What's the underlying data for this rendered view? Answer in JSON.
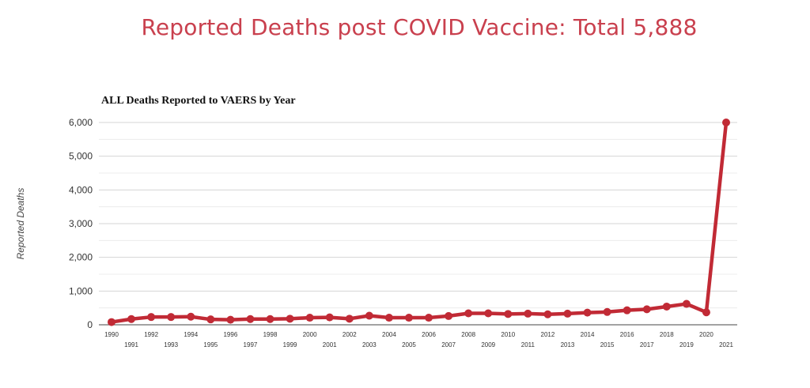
{
  "headline": "Reported Deaths post COVID Vaccine: Total 5,888",
  "chart_data": {
    "type": "line",
    "title": "ALL Deaths Reported to VAERS by Year",
    "xlabel": "",
    "ylabel": "Reported Deaths",
    "ylim": [
      0,
      6000
    ],
    "yticks": [
      0,
      1000,
      2000,
      3000,
      4000,
      5000,
      6000
    ],
    "ytick_labels": [
      "0",
      "1,000",
      "2,000",
      "3,000",
      "4,000",
      "5,000",
      "6,000"
    ],
    "grid": true,
    "line_color": "#c12a35",
    "categories": [
      "1990",
      "1991",
      "1992",
      "1993",
      "1994",
      "1995",
      "1996",
      "1997",
      "1998",
      "1999",
      "2000",
      "2001",
      "2002",
      "2003",
      "2004",
      "2005",
      "2006",
      "2007",
      "2008",
      "2009",
      "2010",
      "2011",
      "2012",
      "2013",
      "2014",
      "2015",
      "2016",
      "2017",
      "2018",
      "2019",
      "2020",
      "2021"
    ],
    "series": [
      {
        "values": [
          80,
          170,
          230,
          230,
          240,
          160,
          150,
          170,
          170,
          180,
          210,
          220,
          180,
          270,
          210,
          210,
          210,
          260,
          340,
          340,
          320,
          330,
          310,
          330,
          360,
          380,
          430,
          460,
          540,
          620,
          370,
          6000
        ]
      }
    ]
  }
}
